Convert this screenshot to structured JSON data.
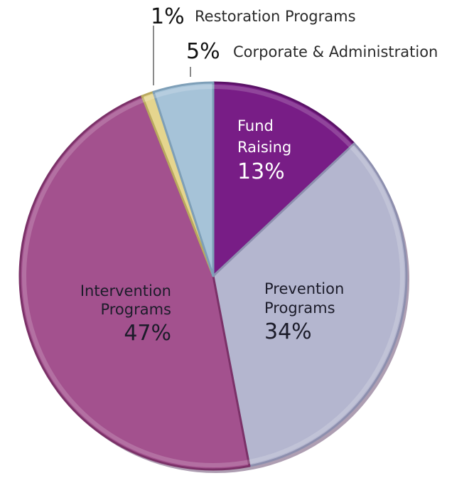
{
  "chart_data": {
    "type": "pie",
    "start_angle_deg": 0,
    "direction": "clockwise",
    "slices": [
      {
        "label_lines": [
          "Fund",
          "Raising"
        ],
        "value": 13,
        "percent_text": "13%",
        "color": "#781d86",
        "edge": "#5a1266",
        "text_color": "#ffffff"
      },
      {
        "label_lines": [
          "Prevention",
          "Programs"
        ],
        "value": 34,
        "percent_text": "34%",
        "color": "#b4b6cf",
        "edge": "#8d8fae",
        "text_color": "#1c1c2a"
      },
      {
        "label_lines": [
          "Intervention",
          "Programs"
        ],
        "value": 47,
        "percent_text": "47%",
        "color": "#a3518e",
        "edge": "#7b3168",
        "text_color": "#1c1c2a"
      },
      {
        "label_lines": [
          "Restoration Programs"
        ],
        "value": 1,
        "percent_text": "1%",
        "color": "#e5d58e",
        "edge": "#b9a95f",
        "text_color": "#2a2a2a"
      },
      {
        "label_lines": [
          "Corporate & Administration"
        ],
        "value": 5,
        "percent_text": "5%",
        "color": "#a6c3d8",
        "edge": "#7e9fb8",
        "text_color": "#2a2a2a"
      }
    ]
  }
}
